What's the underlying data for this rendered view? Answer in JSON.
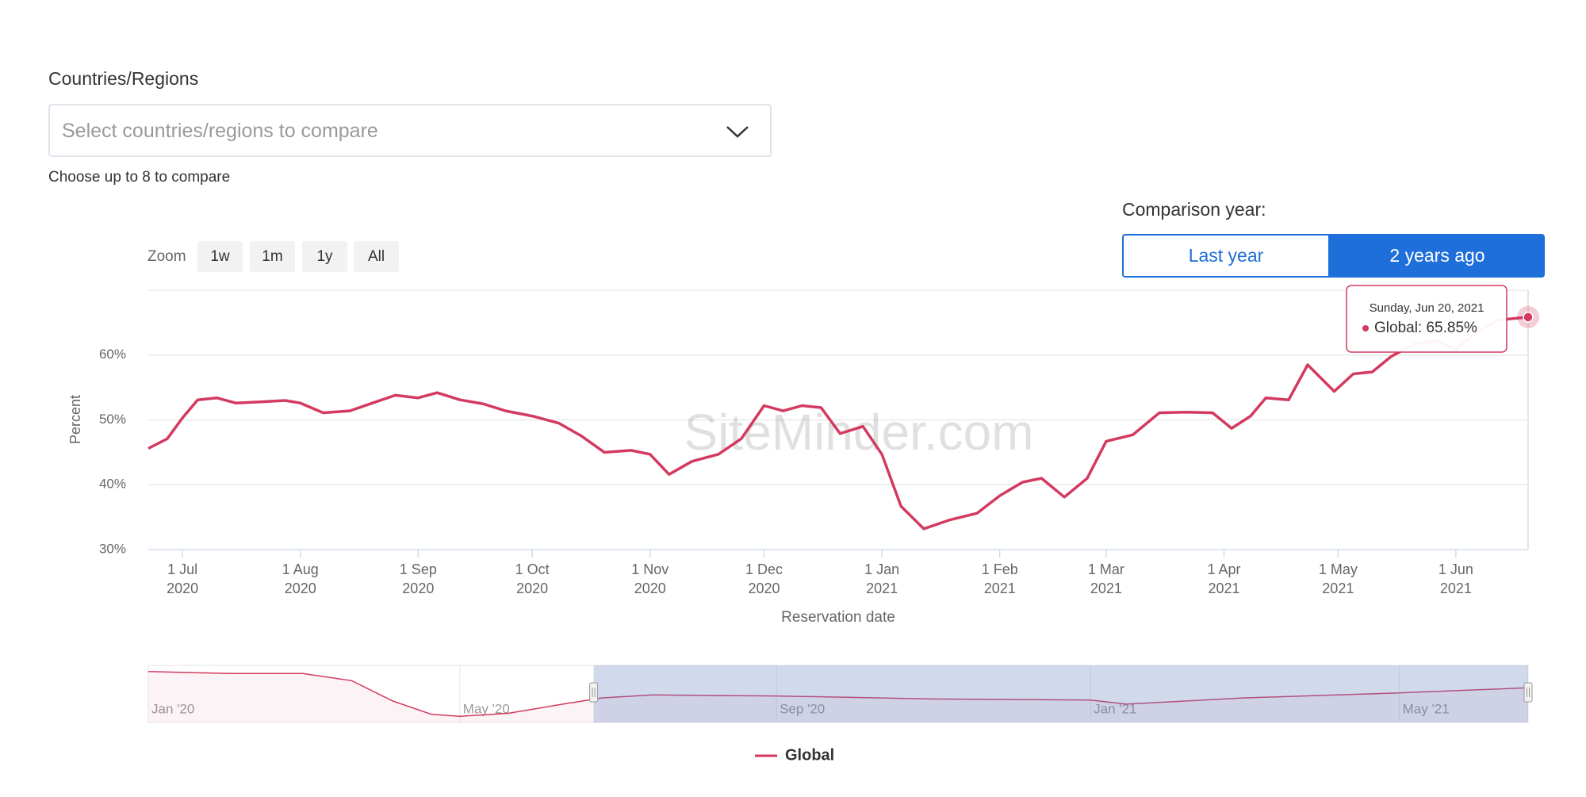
{
  "controls": {
    "countries_label": "Countries/Regions",
    "select_placeholder": "Select countries/regions to compare",
    "select_hint": "Choose up to 8 to compare",
    "comparison_label": "Comparison year:",
    "comparison_options": [
      "Last year",
      "2 years ago"
    ],
    "zoom_label": "Zoom",
    "zoom_options": [
      "1w",
      "1m",
      "1y",
      "All"
    ]
  },
  "chart_data": [
    {
      "type": "line",
      "watermark": "SiteMinder.com",
      "ylabel": "Percent",
      "xlabel": "Reservation date",
      "x": [
        "2020-06-22",
        "2020-06-27",
        "2020-07-01",
        "2020-07-05",
        "2020-07-10",
        "2020-07-15",
        "2020-07-22",
        "2020-07-28",
        "2020-08-01",
        "2020-08-07",
        "2020-08-14",
        "2020-08-20",
        "2020-08-26",
        "2020-09-01",
        "2020-09-06",
        "2020-09-12",
        "2020-09-18",
        "2020-09-24",
        "2020-10-01",
        "2020-10-08",
        "2020-10-14",
        "2020-10-20",
        "2020-10-27",
        "2020-11-01",
        "2020-11-06",
        "2020-11-12",
        "2020-11-19",
        "2020-11-25",
        "2020-12-01",
        "2020-12-06",
        "2020-12-11",
        "2020-12-16",
        "2020-12-21",
        "2020-12-27",
        "2021-01-01",
        "2021-01-06",
        "2021-01-12",
        "2021-01-19",
        "2021-01-26",
        "2021-02-01",
        "2021-02-07",
        "2021-02-12",
        "2021-02-18",
        "2021-02-24",
        "2021-03-01",
        "2021-03-08",
        "2021-03-15",
        "2021-03-22",
        "2021-03-29",
        "2021-04-03",
        "2021-04-08",
        "2021-04-12",
        "2021-04-18",
        "2021-04-23",
        "2021-04-30",
        "2021-05-05",
        "2021-05-10",
        "2021-05-15",
        "2021-05-21",
        "2021-05-27",
        "2021-06-01",
        "2021-06-06",
        "2021-06-12",
        "2021-06-20"
      ],
      "series": [
        {
          "name": "Global",
          "color": "#d33a5f",
          "values": [
            45.6,
            47.1,
            50.3,
            53.1,
            53.4,
            52.6,
            52.8,
            53.0,
            52.6,
            51.1,
            51.4,
            52.6,
            53.8,
            53.4,
            54.2,
            53.1,
            52.5,
            51.4,
            50.6,
            49.5,
            47.5,
            45.0,
            45.3,
            44.7,
            41.6,
            43.6,
            44.7,
            47.1,
            52.2,
            51.4,
            52.2,
            51.9,
            47.9,
            49.0,
            44.7,
            36.7,
            33.2,
            34.6,
            35.6,
            38.3,
            40.4,
            41.0,
            38.1,
            41.0,
            46.7,
            47.7,
            51.1,
            51.2,
            51.1,
            48.7,
            50.6,
            53.4,
            53.1,
            58.5,
            54.4,
            57.1,
            57.4,
            59.8,
            61.7,
            62.2,
            60.9,
            63.3,
            65.4,
            65.85
          ]
        }
      ],
      "xlim": [
        "2020-06-22",
        "2021-06-20"
      ],
      "xticks": [
        {
          "value": "2020-07-01",
          "label": "1 Jul 2020"
        },
        {
          "value": "2020-08-01",
          "label": "1 Aug 2020"
        },
        {
          "value": "2020-09-01",
          "label": "1 Sep 2020"
        },
        {
          "value": "2020-10-01",
          "label": "1 Oct 2020"
        },
        {
          "value": "2020-11-01",
          "label": "1 Nov 2020"
        },
        {
          "value": "2020-12-01",
          "label": "1 Dec 2020"
        },
        {
          "value": "2021-01-01",
          "label": "1 Jan 2021"
        },
        {
          "value": "2021-02-01",
          "label": "1 Feb 2021"
        },
        {
          "value": "2021-03-01",
          "label": "1 Mar 2021"
        },
        {
          "value": "2021-04-01",
          "label": "1 Apr 2021"
        },
        {
          "value": "2021-05-01",
          "label": "1 May 2021"
        },
        {
          "value": "2021-06-01",
          "label": "1 Jun 2021"
        }
      ],
      "ylim": [
        30,
        70
      ],
      "yticks": [
        {
          "value": 30,
          "label": "30%"
        },
        {
          "value": 40,
          "label": "40%"
        },
        {
          "value": 50,
          "label": "50%"
        },
        {
          "value": 60,
          "label": "60%"
        }
      ],
      "grid": true,
      "tooltip": {
        "date": "Sunday, Jun 20, 2021",
        "text": "Global: 65.85%"
      }
    },
    {
      "type": "area",
      "color": "#d33a5f",
      "x": [
        "2020-01-01",
        "2020-02-01",
        "2020-03-01",
        "2020-03-20",
        "2020-04-05",
        "2020-04-20",
        "2020-05-01",
        "2020-05-20",
        "2020-06-10",
        "2020-06-25",
        "2020-07-15",
        "2020-09-01",
        "2020-11-01",
        "2021-01-01",
        "2021-01-15",
        "2021-03-01",
        "2021-05-01",
        "2021-06-20"
      ],
      "values": [
        71.4,
        68.6,
        68.6,
        58.6,
        30,
        11.4,
        8.6,
        12.9,
        25.7,
        34.3,
        38.6,
        37.1,
        32.9,
        31.4,
        25.7,
        34.3,
        41.4,
        48.6
      ],
      "xlim": [
        "2020-01-01",
        "2021-06-20"
      ],
      "ylim": [
        0,
        80
      ],
      "xticks": [
        {
          "value": "2020-01-01",
          "label": "Jan '20"
        },
        {
          "value": "2020-05-01",
          "label": "May '20"
        },
        {
          "value": "2020-09-01",
          "label": "Sep '20"
        },
        {
          "value": "2021-01-01",
          "label": "Jan '21"
        },
        {
          "value": "2021-05-01",
          "label": "May '21"
        }
      ]
    }
  ]
}
